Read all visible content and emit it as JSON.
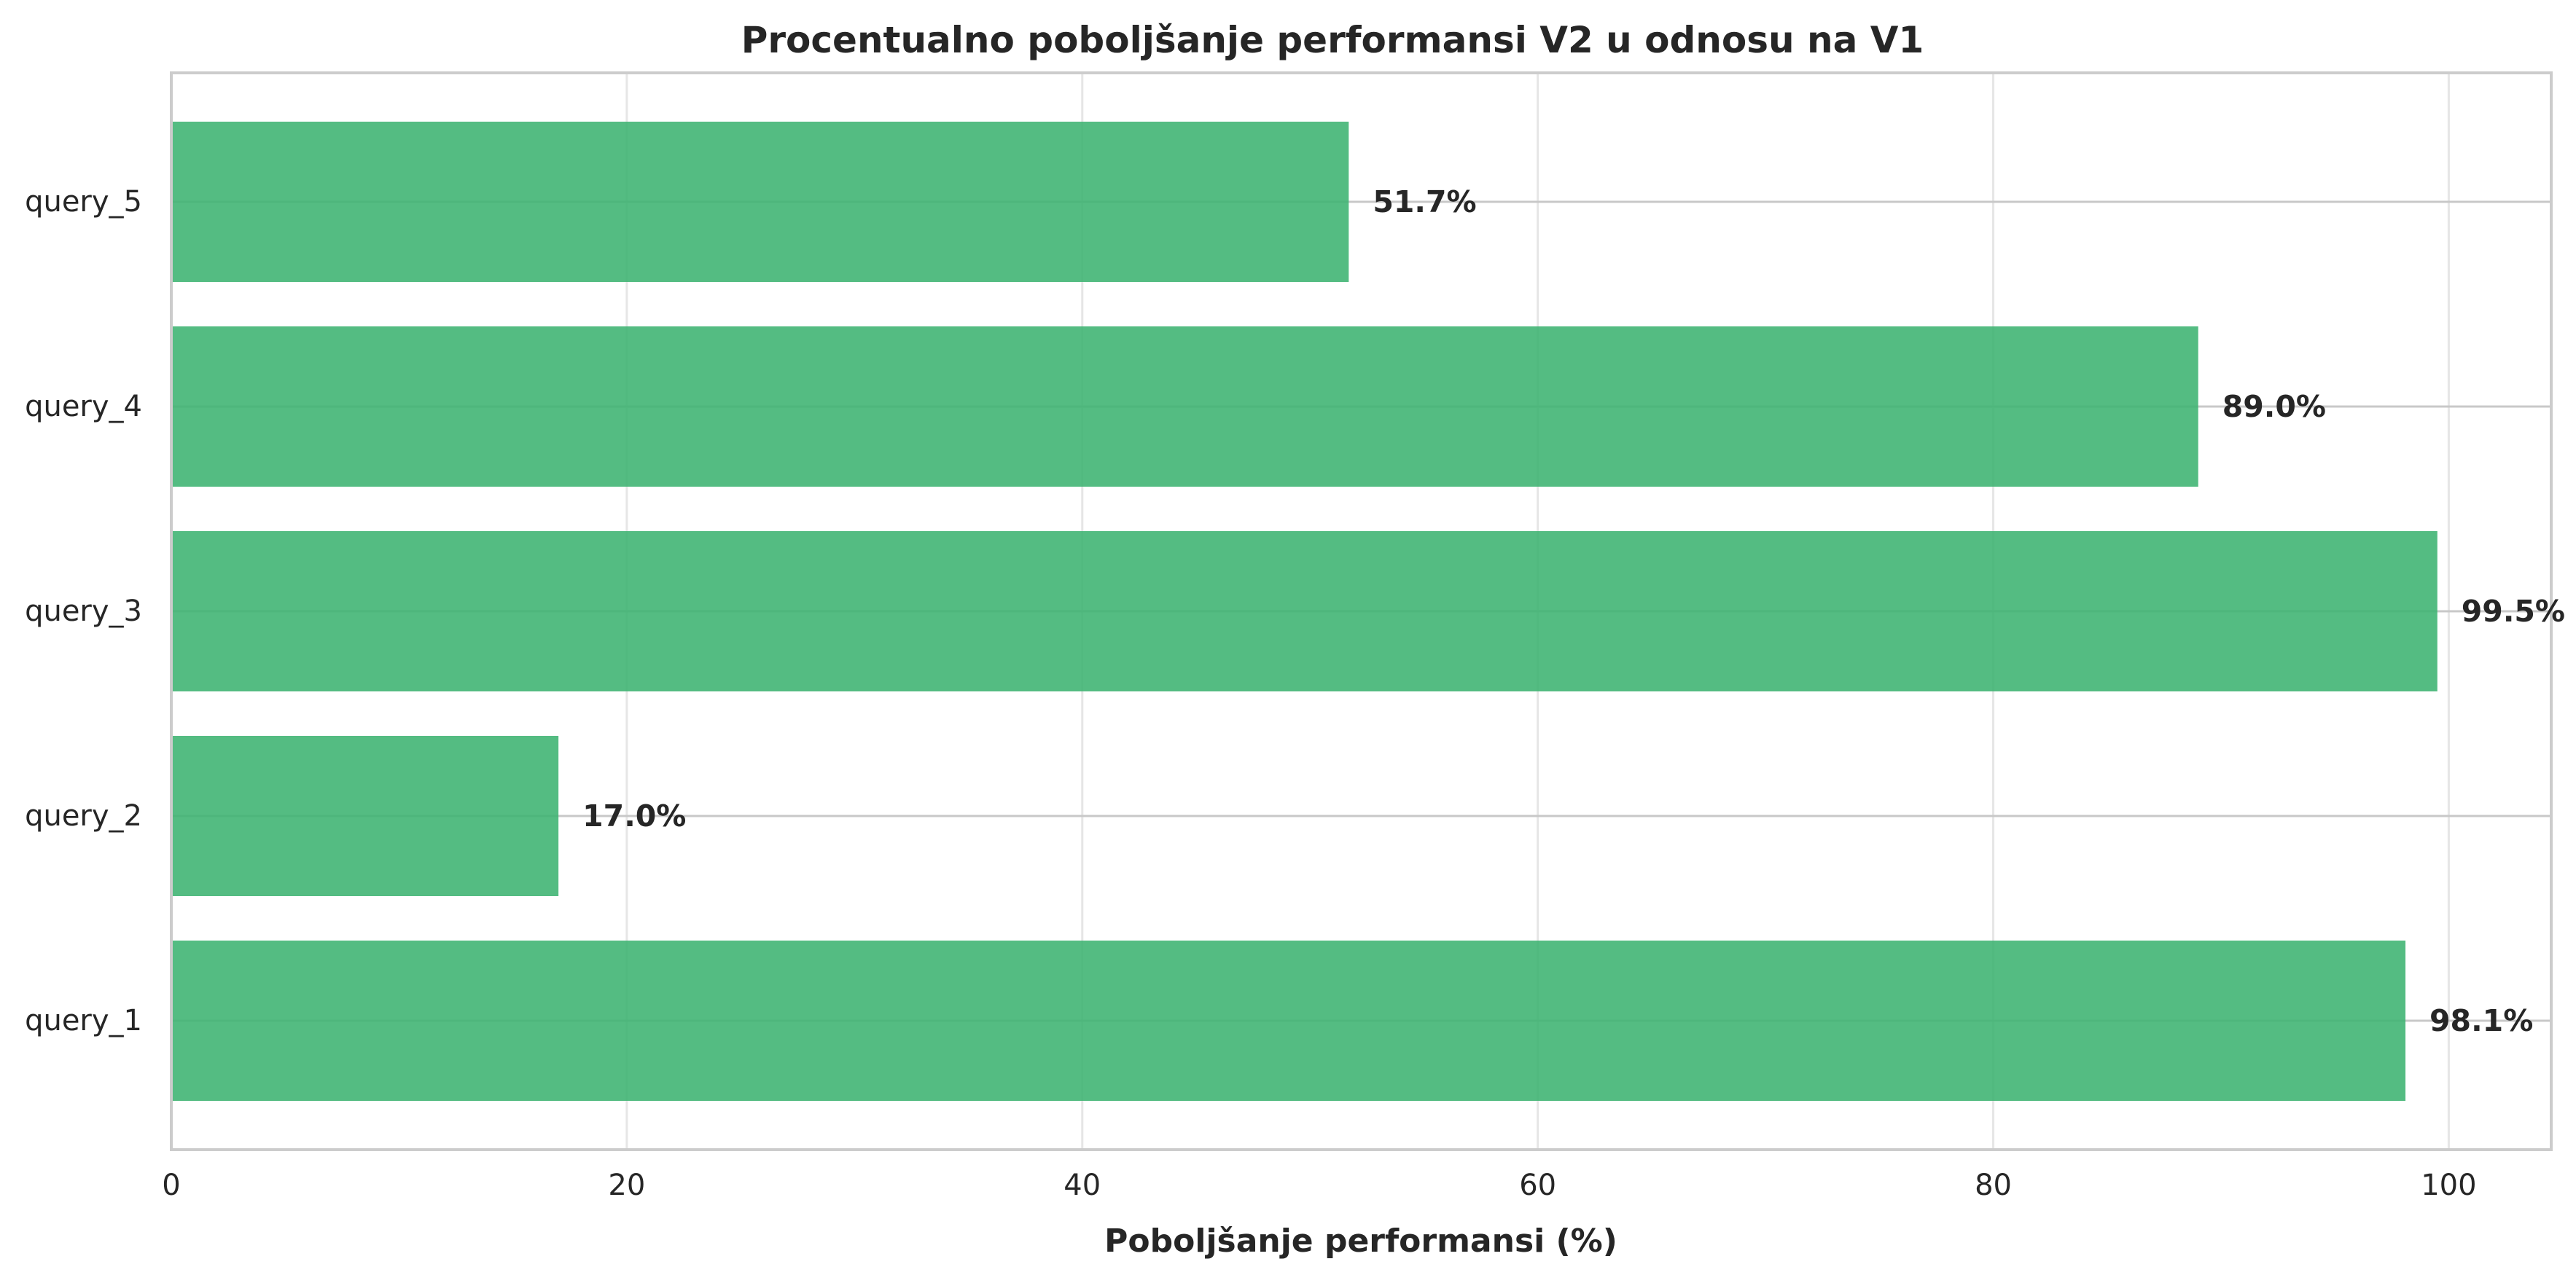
{
  "chart_data": {
    "type": "bar",
    "orientation": "horizontal",
    "title": "Procentualno poboljšanje performansi V2 u odnosu na V1",
    "xlabel": "Poboljšanje performansi (%)",
    "ylabel": "",
    "categories": [
      "query_1",
      "query_2",
      "query_3",
      "query_4",
      "query_5"
    ],
    "values": [
      98.1,
      17.0,
      99.5,
      89.0,
      51.7
    ],
    "value_labels": [
      "98.1%",
      "17.0%",
      "99.5%",
      "89.0%",
      "51.7%"
    ],
    "xlim": [
      0,
      104.5
    ],
    "xticks": [
      0,
      20,
      40,
      60,
      80,
      100
    ],
    "xtick_labels": [
      "0",
      "20",
      "40",
      "60",
      "80",
      "100"
    ],
    "grid": true,
    "colors": {
      "bar": "#3cb371",
      "grid": "#e6e6e6",
      "frame": "#cccccc",
      "text": "#262626"
    }
  }
}
